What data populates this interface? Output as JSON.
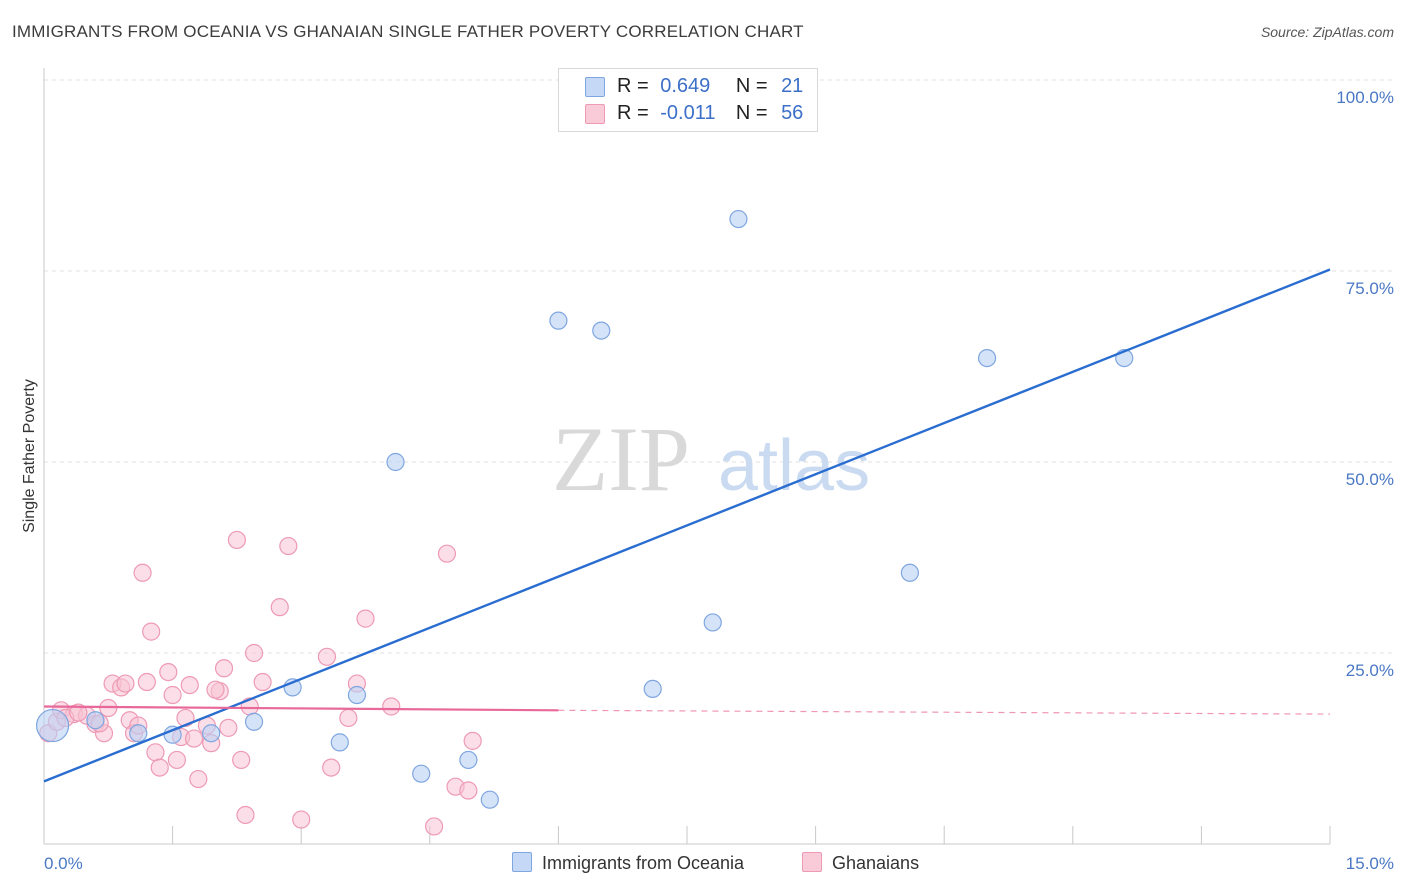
{
  "title": "IMMIGRANTS FROM OCEANIA VS GHANAIAN SINGLE FATHER POVERTY CORRELATION CHART",
  "source": "Source: ZipAtlas.com",
  "watermark": {
    "zip": "ZIP",
    "atlas": "atlas"
  },
  "legend": {
    "rows": [
      {
        "r_label": "R =",
        "r_value": "0.649",
        "n_label": "N =",
        "n_value": "21",
        "color": "#a9c6f0",
        "stroke": "#7aa6e3"
      },
      {
        "r_label": "R =",
        "r_value": "-0.011",
        "n_label": "N =",
        "n_value": "56",
        "color": "#f7bfd0",
        "stroke": "#ee93b0"
      }
    ]
  },
  "bottom_legend": {
    "series_1": "Immigrants from Oceania",
    "series_2": "Ghanaians"
  },
  "colors": {
    "blue_fill": "#b9d0f3",
    "blue_stroke": "#7fa6e0",
    "blue_line": "#2a6dd0",
    "pink_fill": "#f8c3d4",
    "pink_stroke": "#ee9ab5",
    "pink_line": "#e8689a",
    "tick_text": "#4a78c4",
    "grid": "#e2e2e2"
  },
  "chart_data": {
    "type": "scatter",
    "title": "IMMIGRANTS FROM OCEANIA VS GHANAIAN SINGLE FATHER POVERTY CORRELATION CHART",
    "xlabel": "",
    "ylabel": "Single Father Poverty",
    "xlim": [
      0,
      15
    ],
    "ylim": [
      0,
      100
    ],
    "x_tick_labels": [
      "0.0%",
      "15.0%"
    ],
    "y_tick_labels": [
      "25.0%",
      "50.0%",
      "75.0%",
      "100.0%"
    ],
    "y_ticks": [
      25,
      50,
      75,
      100
    ],
    "grid": true,
    "legend_position": "top-center",
    "series": [
      {
        "name": "Immigrants from Oceania",
        "points": [
          [
            0.1,
            15.5
          ],
          [
            0.6,
            16.2
          ],
          [
            1.1,
            14.5
          ],
          [
            1.5,
            14.3
          ],
          [
            1.95,
            14.5
          ],
          [
            2.45,
            16.0
          ],
          [
            2.9,
            20.5
          ],
          [
            3.45,
            13.3
          ],
          [
            3.65,
            19.5
          ],
          [
            4.1,
            50.0
          ],
          [
            4.4,
            9.2
          ],
          [
            4.95,
            11.0
          ],
          [
            5.2,
            5.8
          ],
          [
            6.0,
            68.5
          ],
          [
            6.5,
            67.2
          ],
          [
            7.1,
            20.3
          ],
          [
            7.8,
            29.0
          ],
          [
            8.1,
            81.8
          ],
          [
            10.1,
            35.5
          ],
          [
            11.0,
            63.6
          ],
          [
            12.6,
            63.6
          ]
        ],
        "trend": [
          [
            0,
            8.2
          ],
          [
            15,
            75.2
          ]
        ]
      },
      {
        "name": "Ghanaians",
        "points": [
          [
            0.05,
            14.5
          ],
          [
            0.15,
            16.0
          ],
          [
            0.2,
            17.5
          ],
          [
            0.35,
            17.0
          ],
          [
            0.5,
            16.8
          ],
          [
            0.6,
            15.7
          ],
          [
            0.7,
            14.5
          ],
          [
            0.75,
            17.8
          ],
          [
            0.8,
            21.0
          ],
          [
            0.9,
            20.5
          ],
          [
            0.95,
            21.0
          ],
          [
            1.0,
            16.2
          ],
          [
            1.05,
            14.5
          ],
          [
            1.1,
            15.5
          ],
          [
            1.15,
            35.5
          ],
          [
            1.2,
            21.2
          ],
          [
            1.25,
            27.8
          ],
          [
            1.3,
            12.0
          ],
          [
            1.35,
            10.0
          ],
          [
            1.45,
            22.5
          ],
          [
            1.5,
            19.5
          ],
          [
            1.55,
            11.0
          ],
          [
            1.6,
            14.0
          ],
          [
            1.65,
            16.5
          ],
          [
            1.7,
            20.8
          ],
          [
            1.8,
            8.5
          ],
          [
            1.9,
            15.5
          ],
          [
            1.95,
            13.2
          ],
          [
            2.05,
            20.0
          ],
          [
            2.1,
            23.0
          ],
          [
            2.0,
            20.2
          ],
          [
            2.15,
            15.2
          ],
          [
            2.25,
            39.8
          ],
          [
            2.3,
            11.0
          ],
          [
            2.35,
            3.8
          ],
          [
            2.45,
            25.0
          ],
          [
            2.55,
            21.2
          ],
          [
            2.75,
            31.0
          ],
          [
            2.85,
            39.0
          ],
          [
            3.0,
            3.2
          ],
          [
            3.3,
            24.5
          ],
          [
            3.35,
            10.0
          ],
          [
            3.55,
            16.5
          ],
          [
            3.65,
            21.0
          ],
          [
            3.75,
            29.5
          ],
          [
            4.05,
            18.0
          ],
          [
            4.55,
            2.3
          ],
          [
            4.7,
            38.0
          ],
          [
            4.8,
            7.5
          ],
          [
            4.95,
            7.0
          ],
          [
            5.0,
            13.5
          ],
          [
            2.4,
            18.0
          ],
          [
            0.25,
            16.5
          ],
          [
            0.4,
            17.2
          ],
          [
            1.75,
            13.8
          ],
          [
            0.65,
            15.8
          ]
        ],
        "trend": [
          [
            0,
            18.0
          ],
          [
            6.0,
            17.5
          ]
        ],
        "trend_dashed": [
          [
            6.0,
            17.5
          ],
          [
            15,
            17.0
          ]
        ]
      }
    ]
  }
}
